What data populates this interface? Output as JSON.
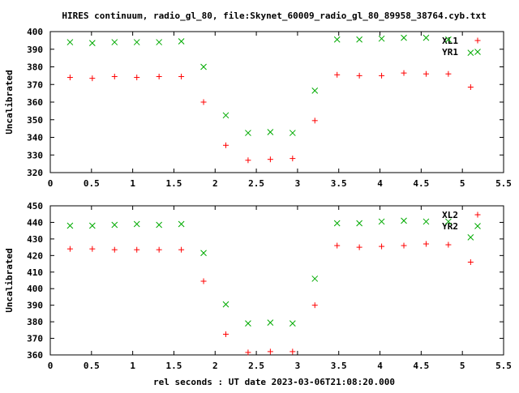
{
  "title": "HIRES continuum, radio_gl_80, file:Skynet_60009_radio_gl_80_89958_38764.cyb.txt",
  "xlabel": "rel seconds : UT date 2023-03-06T21:08:20.000",
  "colors": {
    "xl": "#ff0000",
    "yr": "#00aa00"
  },
  "chart_data": [
    {
      "type": "scatter",
      "ylabel": "Uncalibrated",
      "xlim": [
        0,
        5.5
      ],
      "ylim": [
        320,
        400
      ],
      "xticks": [
        "0",
        "0.5",
        "1",
        "1.5",
        "2",
        "2.5",
        "3",
        "3.5",
        "4",
        "4.5",
        "5",
        "5.5"
      ],
      "yticks": [
        "320",
        "330",
        "340",
        "350",
        "360",
        "370",
        "380",
        "390",
        "400"
      ],
      "legend_position": "top-right",
      "series": [
        {
          "name": "XL1",
          "marker": "+",
          "color": "#ff0000",
          "x": [
            0.24,
            0.51,
            0.78,
            1.05,
            1.32,
            1.59,
            1.86,
            2.13,
            2.4,
            2.67,
            2.94,
            3.21,
            3.48,
            3.75,
            4.02,
            4.29,
            4.56,
            4.83,
            5.1
          ],
          "y": [
            374,
            373.5,
            374.5,
            374,
            374.5,
            374.5,
            360,
            335.5,
            327,
            327.5,
            328,
            349.5,
            375.5,
            375,
            375,
            376.5,
            376,
            376,
            368.5
          ]
        },
        {
          "name": "YR1",
          "marker": "x",
          "color": "#00aa00",
          "x": [
            0.24,
            0.51,
            0.78,
            1.05,
            1.32,
            1.59,
            1.86,
            2.13,
            2.4,
            2.67,
            2.94,
            3.21,
            3.48,
            3.75,
            4.02,
            4.29,
            4.56,
            4.83,
            5.1
          ],
          "y": [
            394,
            393.5,
            394,
            394,
            394,
            394.5,
            380,
            352.5,
            342.5,
            343,
            342.5,
            366.5,
            395.5,
            395.5,
            396,
            396.5,
            396.5,
            395.5,
            388
          ]
        }
      ]
    },
    {
      "type": "scatter",
      "ylabel": "Uncalibrated",
      "xlim": [
        0,
        5.5
      ],
      "ylim": [
        360,
        450
      ],
      "xticks": [
        "0",
        "0.5",
        "1",
        "1.5",
        "2",
        "2.5",
        "3",
        "3.5",
        "4",
        "4.5",
        "5",
        "5.5"
      ],
      "yticks": [
        "360",
        "370",
        "380",
        "390",
        "400",
        "410",
        "420",
        "430",
        "440",
        "450"
      ],
      "legend_position": "top-right",
      "series": [
        {
          "name": "XL2",
          "marker": "+",
          "color": "#ff0000",
          "x": [
            0.24,
            0.51,
            0.78,
            1.05,
            1.32,
            1.59,
            1.86,
            2.13,
            2.4,
            2.67,
            2.94,
            3.21,
            3.48,
            3.75,
            4.02,
            4.29,
            4.56,
            4.83,
            5.1
          ],
          "y": [
            424,
            424,
            423.5,
            423.5,
            423.5,
            423.5,
            404.5,
            372.5,
            361.5,
            362,
            362,
            390,
            426,
            425,
            425.5,
            426,
            427,
            426.5,
            416
          ]
        },
        {
          "name": "YR2",
          "marker": "x",
          "color": "#00aa00",
          "x": [
            0.24,
            0.51,
            0.78,
            1.05,
            1.32,
            1.59,
            1.86,
            2.13,
            2.4,
            2.67,
            2.94,
            3.21,
            3.48,
            3.75,
            4.02,
            4.29,
            4.56,
            4.83,
            5.1
          ],
          "y": [
            438,
            438,
            438.5,
            439,
            438.5,
            439,
            421.5,
            390.5,
            379,
            379.5,
            379,
            406,
            439.5,
            439.5,
            440.5,
            441,
            440.5,
            440.5,
            431
          ]
        }
      ]
    }
  ]
}
